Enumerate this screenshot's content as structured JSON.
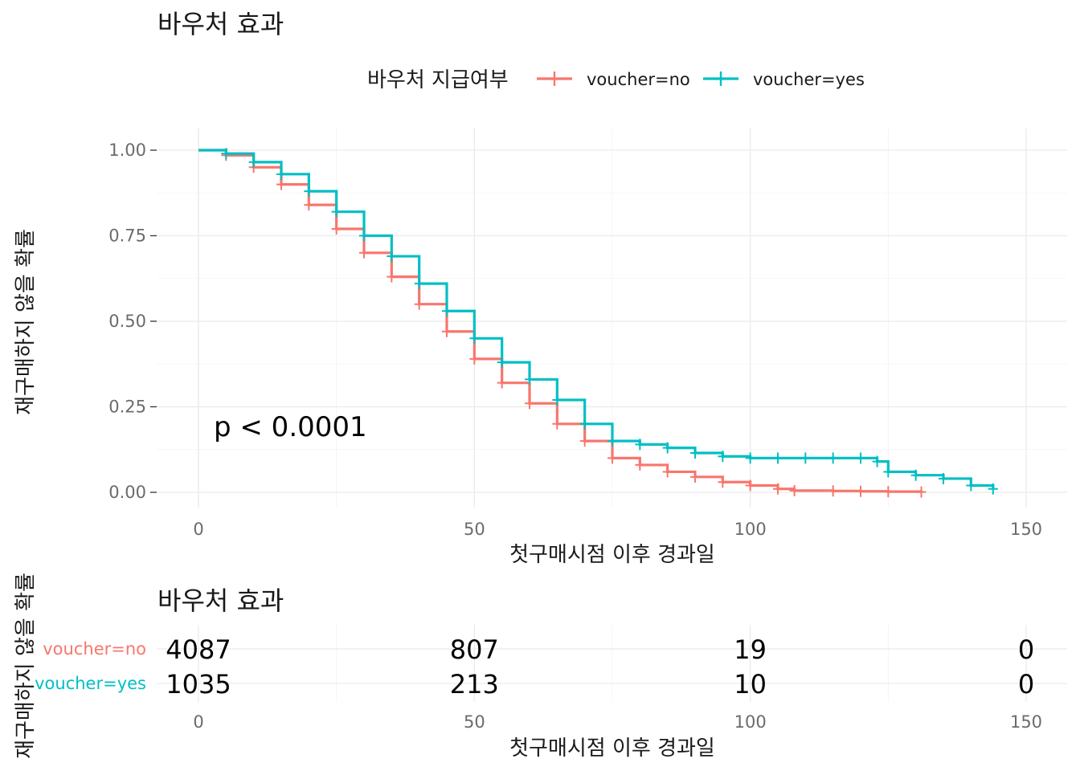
{
  "chart_data": [
    {
      "type": "line",
      "subtype": "kaplan-meier-step",
      "title": "바우처 효과",
      "xlabel": "첫구매시점 이후 경과일",
      "ylabel": "재구매하지 않을 확률",
      "xlim": [
        0,
        150
      ],
      "ylim": [
        0,
        1
      ],
      "x_ticks": [
        "0",
        "50",
        "100",
        "150"
      ],
      "y_ticks": [
        "0.00",
        "0.25",
        "0.50",
        "0.75",
        "1.00"
      ],
      "grid": true,
      "legend": {
        "title": "바우처 지급여부",
        "position": "top",
        "entries": [
          "voucher=no",
          "voucher=yes"
        ]
      },
      "annotation": "p < 0.0001",
      "series": [
        {
          "name": "voucher=no",
          "color": "#f8766d",
          "x": [
            0,
            5,
            10,
            15,
            20,
            25,
            30,
            35,
            40,
            45,
            50,
            55,
            60,
            65,
            70,
            75,
            80,
            85,
            90,
            95,
            100,
            105,
            108,
            115,
            120,
            125,
            131
          ],
          "y": [
            1.0,
            0.985,
            0.95,
            0.9,
            0.84,
            0.77,
            0.7,
            0.63,
            0.55,
            0.47,
            0.39,
            0.32,
            0.26,
            0.2,
            0.15,
            0.1,
            0.08,
            0.06,
            0.045,
            0.03,
            0.02,
            0.01,
            0.005,
            0.004,
            0.003,
            0.002,
            0.001
          ]
        },
        {
          "name": "voucher=yes",
          "color": "#00bfc4",
          "x": [
            0,
            5,
            10,
            15,
            20,
            25,
            30,
            35,
            40,
            45,
            50,
            55,
            60,
            65,
            70,
            75,
            80,
            85,
            90,
            95,
            100,
            105,
            110,
            115,
            120,
            123,
            125,
            130,
            135,
            140,
            144
          ],
          "y": [
            1.0,
            0.99,
            0.965,
            0.93,
            0.88,
            0.82,
            0.75,
            0.69,
            0.61,
            0.53,
            0.45,
            0.38,
            0.33,
            0.27,
            0.2,
            0.15,
            0.14,
            0.13,
            0.115,
            0.105,
            0.1,
            0.1,
            0.1,
            0.1,
            0.1,
            0.09,
            0.06,
            0.05,
            0.04,
            0.02,
            0.01
          ]
        }
      ]
    },
    {
      "type": "table",
      "subtype": "risk-table",
      "title": "바우처 효과",
      "xlabel": "첫구매시점 이후 경과일",
      "ylabel": "재구매하지 않을 확률",
      "x_ticks": [
        "0",
        "50",
        "100",
        "150"
      ],
      "times": [
        0,
        50,
        100,
        150
      ],
      "rows": [
        {
          "name": "voucher=no",
          "color": "#f8766d",
          "counts": [
            "4087",
            "807",
            "19",
            "0"
          ]
        },
        {
          "name": "voucher=yes",
          "color": "#00bfc4",
          "counts": [
            "1035",
            "213",
            "10",
            "0"
          ]
        }
      ]
    }
  ]
}
